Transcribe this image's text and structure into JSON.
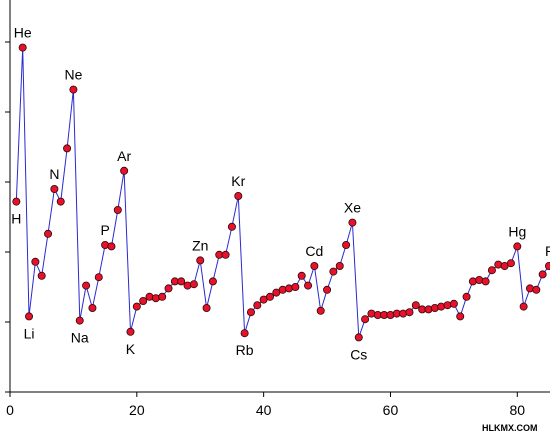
{
  "chart_data": {
    "type": "line",
    "title": "",
    "xlabel": "",
    "ylabel": "",
    "xlim": [
      0,
      85
    ],
    "ylim": [
      0,
      28
    ],
    "x_ticks": [
      0,
      20,
      40,
      60,
      80
    ],
    "grid": false,
    "legend": "none",
    "colors": {
      "marker": "#e8102a",
      "marker_edge": "#2a0a0a",
      "line": "#2a2ad0",
      "axis": "#000000"
    },
    "x": [
      1,
      2,
      3,
      4,
      5,
      6,
      7,
      8,
      9,
      10,
      11,
      12,
      13,
      14,
      15,
      16,
      17,
      18,
      19,
      20,
      21,
      22,
      23,
      24,
      25,
      26,
      27,
      28,
      29,
      30,
      31,
      32,
      33,
      34,
      35,
      36,
      37,
      38,
      39,
      40,
      41,
      42,
      43,
      44,
      45,
      46,
      47,
      48,
      49,
      50,
      51,
      52,
      53,
      54,
      55,
      56,
      57,
      58,
      59,
      60,
      61,
      62,
      63,
      64,
      65,
      66,
      67,
      68,
      69,
      70,
      71,
      72,
      73,
      74,
      75,
      76,
      77,
      78,
      79,
      80,
      81,
      82,
      83,
      84,
      85
    ],
    "values": [
      13.6,
      24.6,
      5.4,
      9.3,
      8.3,
      11.3,
      14.5,
      13.6,
      17.4,
      21.6,
      5.1,
      7.6,
      6.0,
      8.2,
      10.5,
      10.4,
      13.0,
      15.8,
      4.3,
      6.1,
      6.5,
      6.8,
      6.7,
      6.8,
      7.4,
      7.9,
      7.9,
      7.6,
      7.7,
      9.4,
      6.0,
      7.9,
      9.8,
      9.8,
      11.8,
      14.0,
      4.2,
      5.7,
      6.2,
      6.6,
      6.8,
      7.1,
      7.3,
      7.4,
      7.5,
      8.3,
      7.6,
      9.0,
      5.8,
      7.3,
      8.6,
      9.0,
      10.5,
      12.1,
      3.9,
      5.2,
      5.6,
      5.5,
      5.5,
      5.5,
      5.6,
      5.6,
      5.7,
      6.2,
      5.9,
      5.9,
      6.0,
      6.1,
      6.2,
      6.3,
      5.4,
      6.8,
      7.9,
      8.0,
      7.9,
      8.7,
      9.1,
      9.0,
      9.2,
      10.4,
      6.1,
      7.4,
      7.3,
      8.4,
      9.0
    ],
    "annotations": [
      {
        "label": "H",
        "x": 1,
        "pos": "below"
      },
      {
        "label": "He",
        "x": 2,
        "pos": "above"
      },
      {
        "label": "Li",
        "x": 3,
        "pos": "below"
      },
      {
        "label": "N",
        "x": 7,
        "pos": "above"
      },
      {
        "label": "Ne",
        "x": 10,
        "pos": "above"
      },
      {
        "label": "Na",
        "x": 11,
        "pos": "below"
      },
      {
        "label": "P",
        "x": 15,
        "pos": "above"
      },
      {
        "label": "Ar",
        "x": 18,
        "pos": "above"
      },
      {
        "label": "K",
        "x": 19,
        "pos": "below"
      },
      {
        "label": "Zn",
        "x": 30,
        "pos": "above"
      },
      {
        "label": "Kr",
        "x": 36,
        "pos": "above"
      },
      {
        "label": "Rb",
        "x": 37,
        "pos": "below"
      },
      {
        "label": "Cd",
        "x": 48,
        "pos": "above"
      },
      {
        "label": "Xe",
        "x": 54,
        "pos": "above"
      },
      {
        "label": "Cs",
        "x": 55,
        "pos": "below"
      },
      {
        "label": "Hg",
        "x": 80,
        "pos": "above"
      },
      {
        "label": "R",
        "x": 85,
        "pos": "above"
      }
    ]
  },
  "credit": "HLKMX.COM"
}
